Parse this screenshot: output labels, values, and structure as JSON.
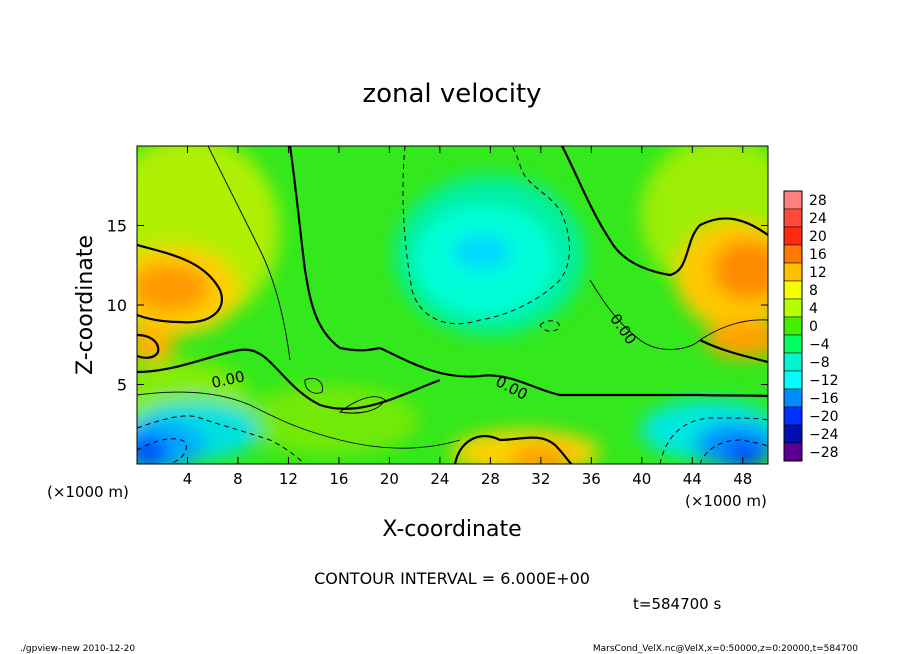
{
  "chart_data": {
    "type": "heatmap",
    "title": "zonal velocity",
    "xlabel": "X-coordinate",
    "ylabel": "Z-coordinate",
    "x_unit_left": "(×1000 m)",
    "x_unit_right": "(×1000 m)",
    "y_unit": "(×1000 m)",
    "xlim": [
      0,
      50
    ],
    "ylim": [
      0,
      20
    ],
    "x_ticks": [
      4,
      8,
      12,
      16,
      20,
      24,
      28,
      32,
      36,
      40,
      44,
      48
    ],
    "y_ticks": [
      5,
      10,
      15
    ],
    "colorbar": {
      "levels": [
        28,
        24,
        20,
        16,
        12,
        8,
        4,
        0,
        -4,
        -8,
        -12,
        -16,
        -20,
        -24,
        -28
      ],
      "colors": [
        "#ff8080",
        "#ff4a3a",
        "#ff2a10",
        "#ff7a00",
        "#ffc000",
        "#f5ff00",
        "#b4ff00",
        "#40f000",
        "#00ff60",
        "#00f5d0",
        "#00ffff",
        "#008cff",
        "#0030ff",
        "#0010b0",
        "#5a0090"
      ]
    },
    "contour_labels": [
      {
        "text": "0.00",
        "x": 7.3,
        "z": 5.0,
        "rot": -12
      },
      {
        "text": "0.00",
        "x": 29.5,
        "z": 4.5,
        "rot": 28
      },
      {
        "text": "0.00",
        "x": 38.2,
        "z": 8.3,
        "rot": 55
      }
    ],
    "contour_interval": "CONTOUR INTERVAL = 6.000E+00",
    "time_label": "t=584700 s",
    "footer_left": "./gpview-new  2010-12-20",
    "footer_right": "MarsCond_VelX.nc@VelX,x=0:50000,z=0:20000,t=584700"
  }
}
